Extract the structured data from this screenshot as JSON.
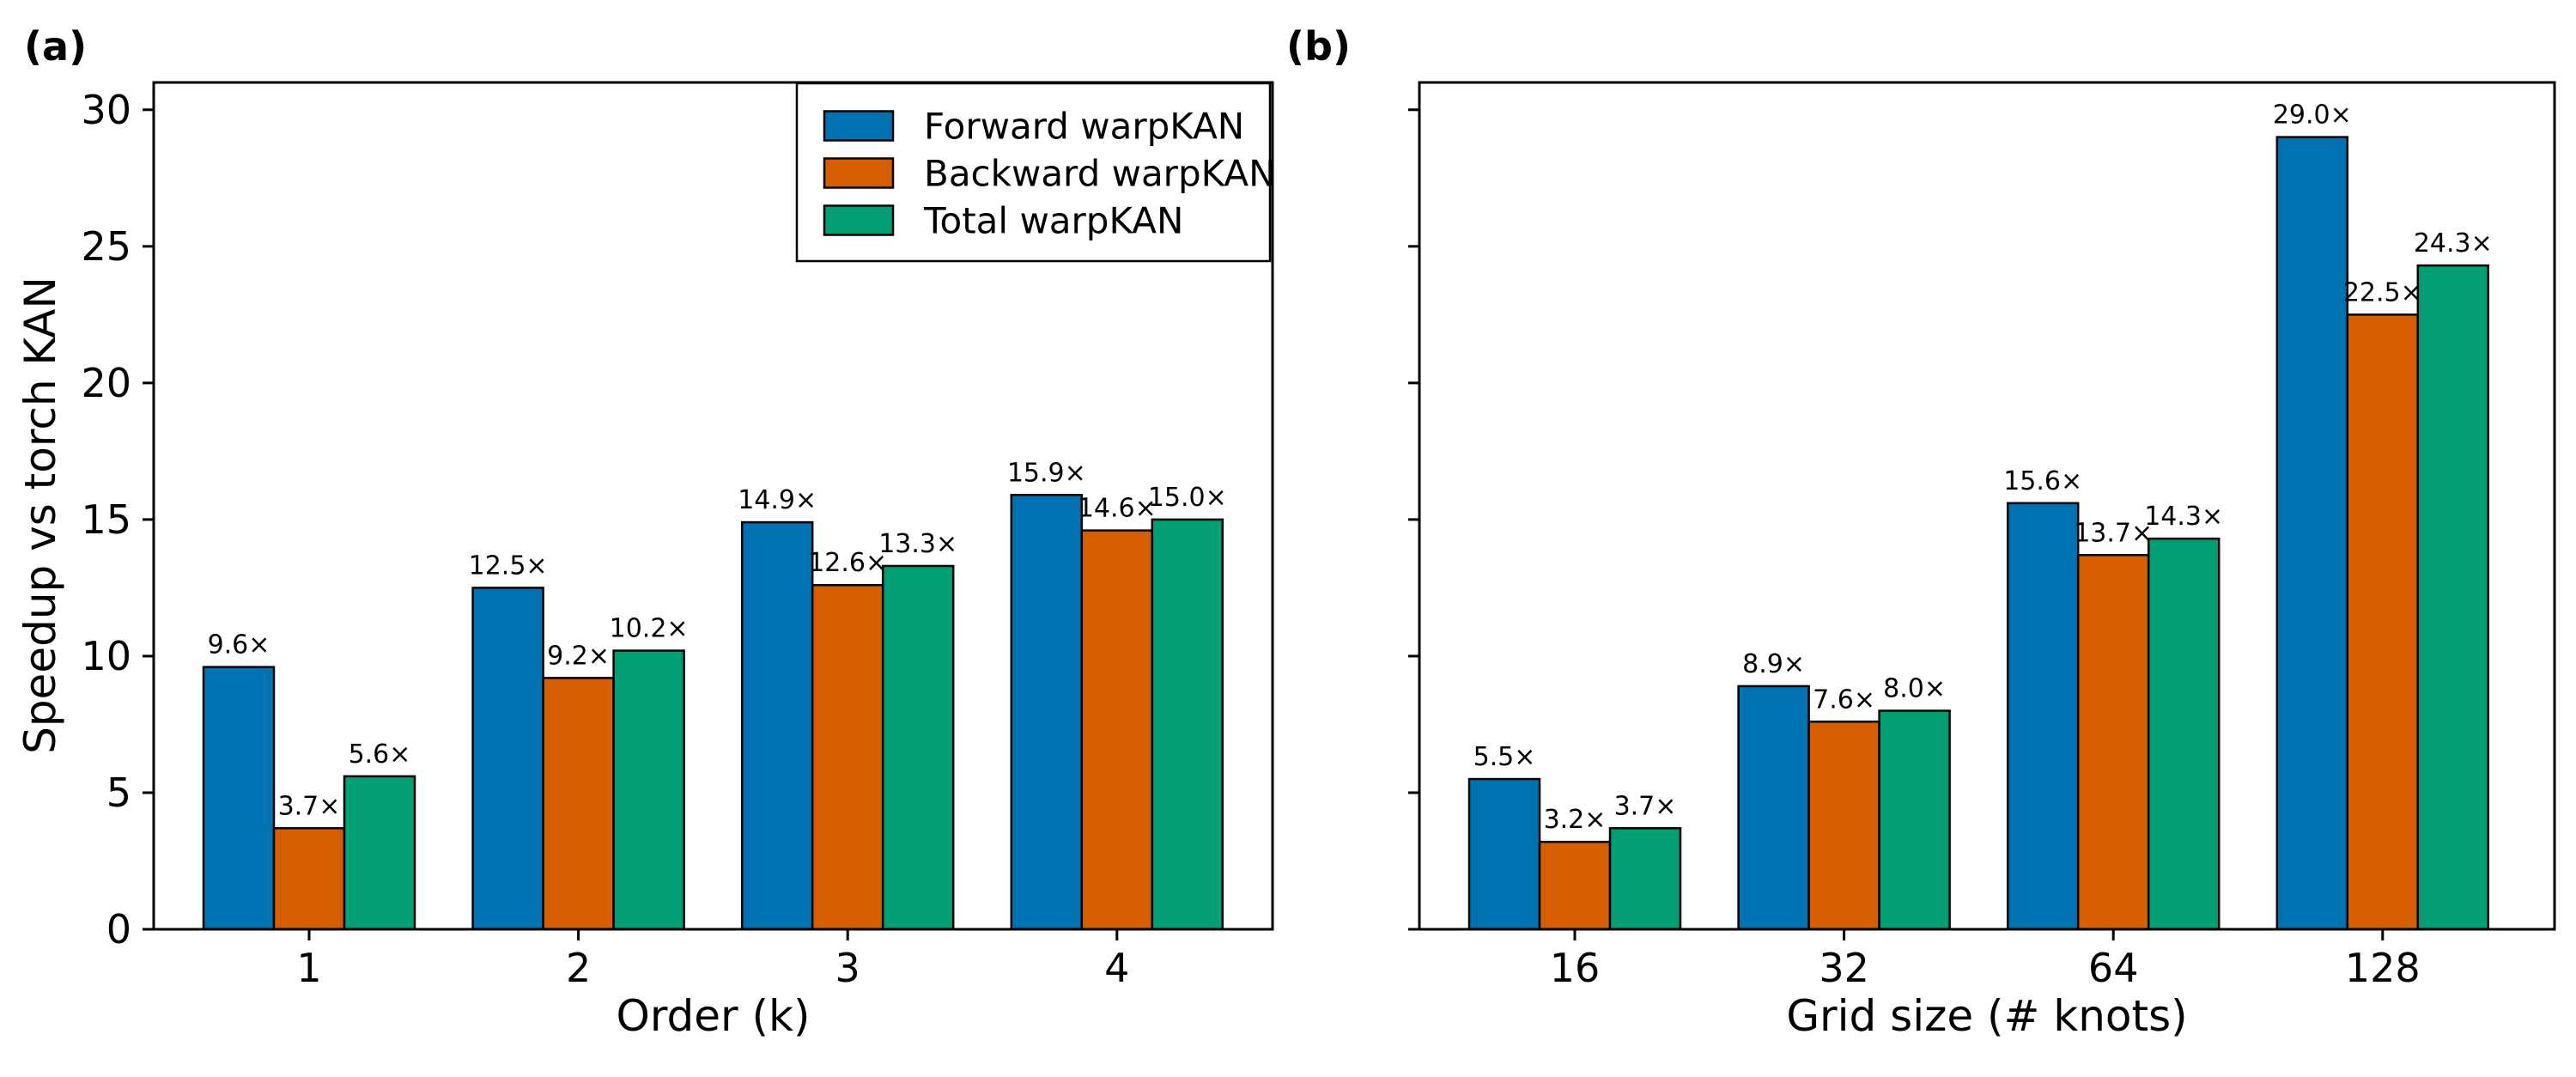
{
  "figure": {
    "background": "#ffffff",
    "panel_labels": [
      "(a)",
      "(b)"
    ]
  },
  "chart_data": [
    {
      "type": "bar",
      "panel_label": "(a)",
      "title": "",
      "xlabel": "Order (k)",
      "ylabel": "Speedup vs torch KAN",
      "categories": [
        "1",
        "2",
        "3",
        "4"
      ],
      "series": [
        {
          "name": "Forward warpKAN",
          "color": "#0072B2",
          "values": [
            9.6,
            12.5,
            14.9,
            15.9
          ],
          "bar_labels": [
            "9.6×",
            "12.5×",
            "14.9×",
            "15.9×"
          ]
        },
        {
          "name": "Backward warpKAN",
          "color": "#D55E00",
          "values": [
            3.7,
            9.2,
            12.6,
            14.6
          ],
          "bar_labels": [
            "3.7×",
            "9.2×",
            "12.6×",
            "14.6×"
          ]
        },
        {
          "name": "Total warpKAN",
          "color": "#029E73",
          "values": [
            5.6,
            10.2,
            13.3,
            15.0
          ],
          "bar_labels": [
            "5.6×",
            "10.2×",
            "13.3×",
            "15.0×"
          ]
        }
      ],
      "ylim": [
        0,
        31
      ],
      "yticks": [
        0,
        5,
        10,
        15,
        20,
        25,
        30
      ],
      "ytick_labels": [
        "0",
        "5",
        "10",
        "15",
        "20",
        "25",
        "30"
      ],
      "grid": false,
      "legend": true,
      "legend_position": "upper right",
      "bar_edge_color": "#000000"
    },
    {
      "type": "bar",
      "panel_label": "(b)",
      "title": "",
      "xlabel": "Grid size (# knots)",
      "ylabel": "",
      "categories": [
        "16",
        "32",
        "64",
        "128"
      ],
      "series": [
        {
          "name": "Forward warpKAN",
          "color": "#0072B2",
          "values": [
            5.5,
            8.9,
            15.6,
            29.0
          ],
          "bar_labels": [
            "5.5×",
            "8.9×",
            "15.6×",
            "29.0×"
          ]
        },
        {
          "name": "Backward warpKAN",
          "color": "#D55E00",
          "values": [
            3.2,
            7.6,
            13.7,
            22.5
          ],
          "bar_labels": [
            "3.2×",
            "7.6×",
            "13.7×",
            "22.5×"
          ]
        },
        {
          "name": "Total warpKAN",
          "color": "#029E73",
          "values": [
            3.7,
            8.0,
            14.3,
            24.3
          ],
          "bar_labels": [
            "3.7×",
            "8.0×",
            "14.3×",
            "24.3×"
          ]
        }
      ],
      "ylim": [
        0,
        31
      ],
      "yticks": [
        0,
        5,
        10,
        15,
        20,
        25,
        30
      ],
      "ytick_labels": [],
      "grid": false,
      "legend": false,
      "bar_edge_color": "#000000"
    }
  ]
}
